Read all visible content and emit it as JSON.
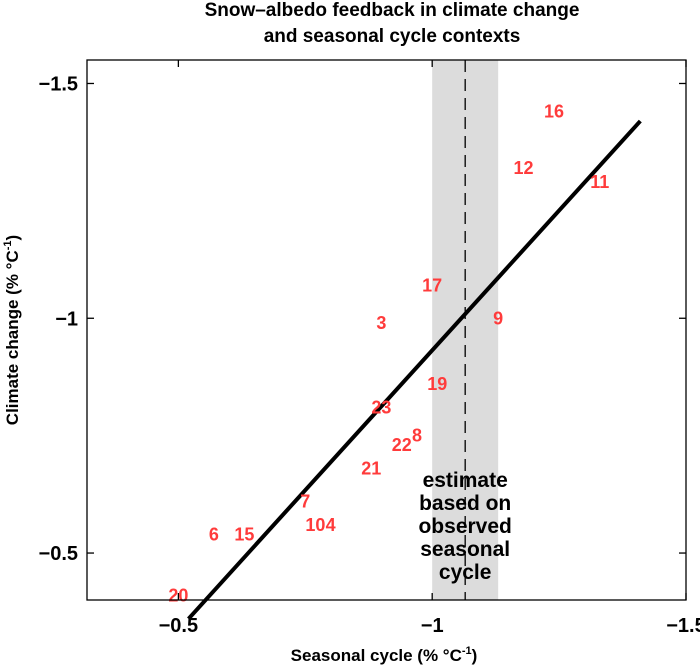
{
  "chart_data": {
    "type": "scatter",
    "title": [
      "Snow–albedo feedback in climate change",
      "and seasonal cycle contexts"
    ],
    "xlabel": "Seasonal cycle (% °C",
    "xlabel_sup": "-1",
    "xlabel_end": ")",
    "ylabel": "Climate change (% °C",
    "ylabel_sup": "-1",
    "ylabel_end": ")",
    "xlim": [
      -0.32,
      -1.5
    ],
    "ylim": [
      -0.4,
      -1.55
    ],
    "xticks": [
      {
        "value": -0.5,
        "label": "−0.5"
      },
      {
        "value": -1.0,
        "label": "−1"
      },
      {
        "value": -1.5,
        "label": "−1.5"
      }
    ],
    "yticks": [
      {
        "value": -0.5,
        "label": "−0.5"
      },
      {
        "value": -1.0,
        "label": "−1"
      },
      {
        "value": -1.5,
        "label": "−1.5"
      }
    ],
    "points": [
      {
        "label": "16",
        "x": -1.24,
        "y": -1.44
      },
      {
        "label": "12",
        "x": -1.18,
        "y": -1.32
      },
      {
        "label": "11",
        "x": -1.33,
        "y": -1.29
      },
      {
        "label": "17",
        "x": -1.0,
        "y": -1.07
      },
      {
        "label": "9",
        "x": -1.13,
        "y": -1.0
      },
      {
        "label": "3",
        "x": -0.9,
        "y": -0.99
      },
      {
        "label": "19",
        "x": -1.01,
        "y": -0.86
      },
      {
        "label": "23",
        "x": -0.9,
        "y": -0.81
      },
      {
        "label": "8",
        "x": -0.97,
        "y": -0.75
      },
      {
        "label": "22",
        "x": -0.94,
        "y": -0.73
      },
      {
        "label": "21",
        "x": -0.88,
        "y": -0.68
      },
      {
        "label": "7",
        "x": -0.75,
        "y": -0.61
      },
      {
        "label": "10",
        "x": -0.77,
        "y": -0.56
      },
      {
        "label": "4",
        "x": -0.8,
        "y": -0.56
      },
      {
        "label": "6",
        "x": -0.57,
        "y": -0.54
      },
      {
        "label": "15",
        "x": -0.63,
        "y": -0.54
      },
      {
        "label": "20",
        "x": -0.5,
        "y": -0.41
      }
    ],
    "fit_line": {
      "x": [
        -0.52,
        -1.41
      ],
      "y": [
        -0.36,
        -1.42
      ]
    },
    "estimate_band": {
      "x_range": [
        -1.0,
        -1.13
      ],
      "x_center": -1.065
    },
    "annotation": [
      "estimate",
      "based on",
      "observed",
      "seasonal",
      "cycle"
    ],
    "colors": {
      "points": "#ff3b3b",
      "band": "#dcdcdc",
      "line": "#000000"
    }
  }
}
